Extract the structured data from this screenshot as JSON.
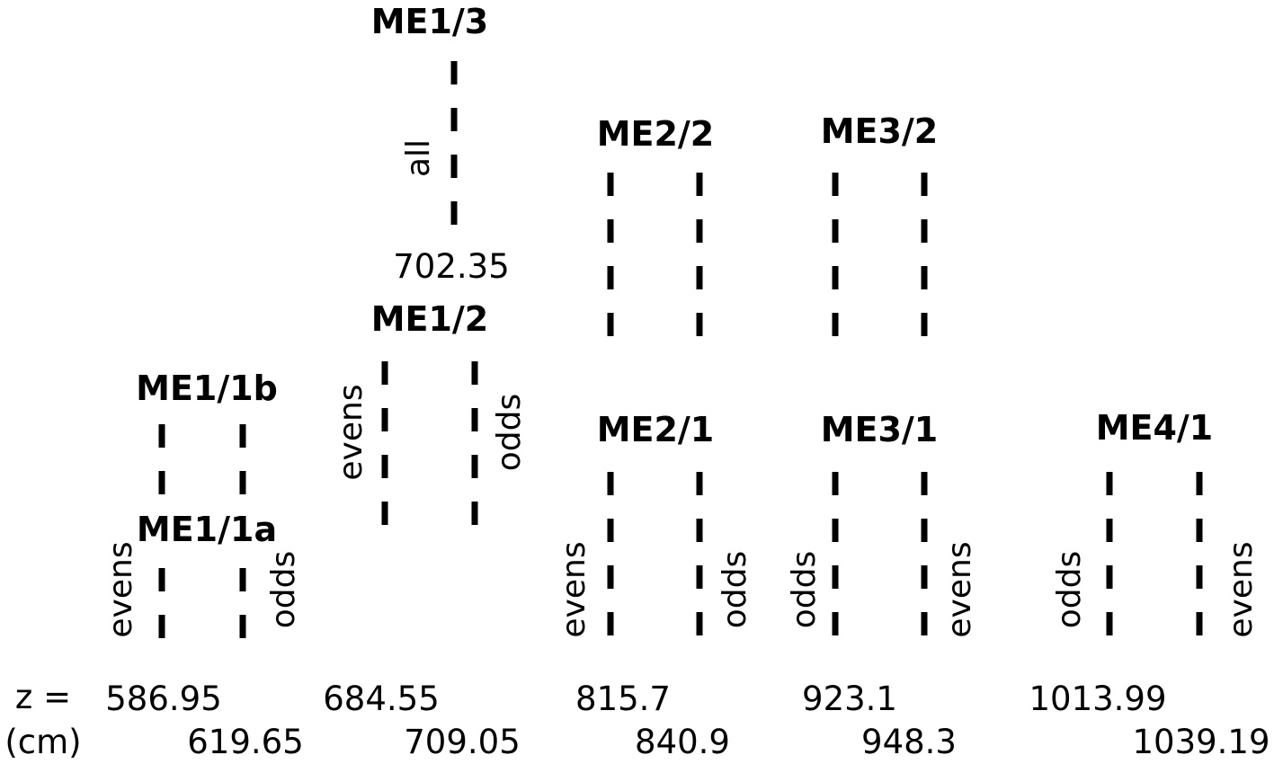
{
  "chambers": [
    {
      "id": "me1-3",
      "title": "ME1/3",
      "side_left": "all",
      "side_right": "",
      "inner_z": "702.35"
    },
    {
      "id": "me1-2",
      "title": "ME1/2",
      "side_left": "evens",
      "side_right": "odds"
    },
    {
      "id": "me1-1b",
      "title": "ME1/1b",
      "side_left": "",
      "side_right": ""
    },
    {
      "id": "me1-1a",
      "title": "ME1/1a",
      "side_left": "evens",
      "side_right": "odds"
    },
    {
      "id": "me2-2",
      "title": "ME2/2",
      "side_left": "",
      "side_right": ""
    },
    {
      "id": "me2-1",
      "title": "ME2/1",
      "side_left": "evens",
      "side_right": "odds"
    },
    {
      "id": "me3-2",
      "title": "ME3/2",
      "side_left": "",
      "side_right": ""
    },
    {
      "id": "me3-1",
      "title": "ME3/1",
      "side_left": "odds",
      "side_right": "evens"
    },
    {
      "id": "me4-1",
      "title": "ME4/1",
      "side_left": "odds",
      "side_right": "evens"
    }
  ],
  "z_axis": {
    "label_line1": "z =",
    "label_line2": "(cm)",
    "row1": [
      "586.95",
      "684.55",
      "815.7",
      "923.1",
      "1013.99"
    ],
    "row2": [
      "619.65",
      "709.05",
      "840.9",
      "948.3",
      "1039.19"
    ]
  }
}
